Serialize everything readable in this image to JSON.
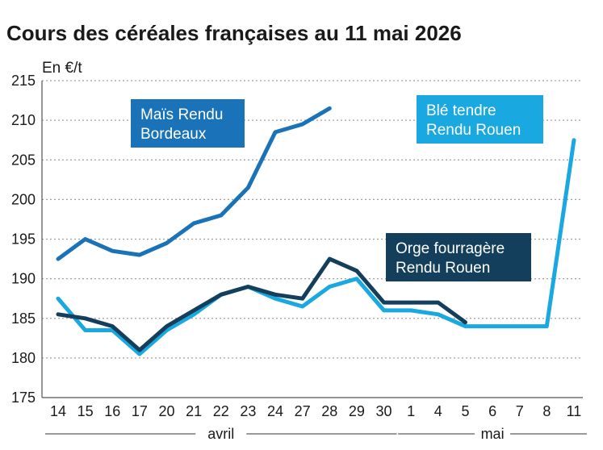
{
  "chart_data": {
    "type": "line",
    "title": "Cours des céréales françaises au 11 mai 2026",
    "ylabel": "En €/t",
    "ylim": [
      175,
      215
    ],
    "yticks": [
      175,
      180,
      185,
      190,
      195,
      200,
      205,
      210,
      215
    ],
    "categories": [
      "14",
      "15",
      "16",
      "17",
      "20",
      "21",
      "22",
      "23",
      "24",
      "27",
      "28",
      "29",
      "30",
      "1",
      "4",
      "5",
      "6",
      "7",
      "8",
      "11"
    ],
    "month_groups": [
      {
        "label": "avril",
        "from": 0,
        "to": 12
      },
      {
        "label": "mai",
        "from": 13,
        "to": 19
      }
    ],
    "grid": true,
    "series": [
      {
        "name": "Maïs Rendu Bordeaux",
        "label_lines": [
          "Maïs Rendu",
          "Bordeaux"
        ],
        "color": "#1a73b8",
        "values": [
          192.5,
          195,
          193.5,
          193,
          194.5,
          197,
          198,
          201.5,
          208.5,
          209.5,
          211.5,
          null,
          null,
          null,
          null,
          null,
          null,
          null,
          null,
          null
        ]
      },
      {
        "name": "Blé tendre Rendu Rouen",
        "label_lines": [
          "Blé tendre",
          "Rendu Rouen"
        ],
        "color": "#19a9e0",
        "values": [
          187.5,
          183.5,
          183.5,
          180.5,
          183.5,
          185.5,
          188,
          189,
          187.5,
          186.5,
          189,
          190,
          186,
          186,
          185.5,
          184,
          184,
          184,
          184,
          207.5
        ]
      },
      {
        "name": "Orge fourragère Rendu Rouen",
        "label_lines": [
          "Orge fourragère",
          "Rendu Rouen"
        ],
        "color": "#143f5c",
        "values": [
          185.5,
          185,
          184,
          181,
          184,
          186,
          188,
          189,
          188,
          187.5,
          192.5,
          191,
          187,
          187,
          187,
          184.5,
          null,
          null,
          null,
          null
        ]
      }
    ]
  }
}
